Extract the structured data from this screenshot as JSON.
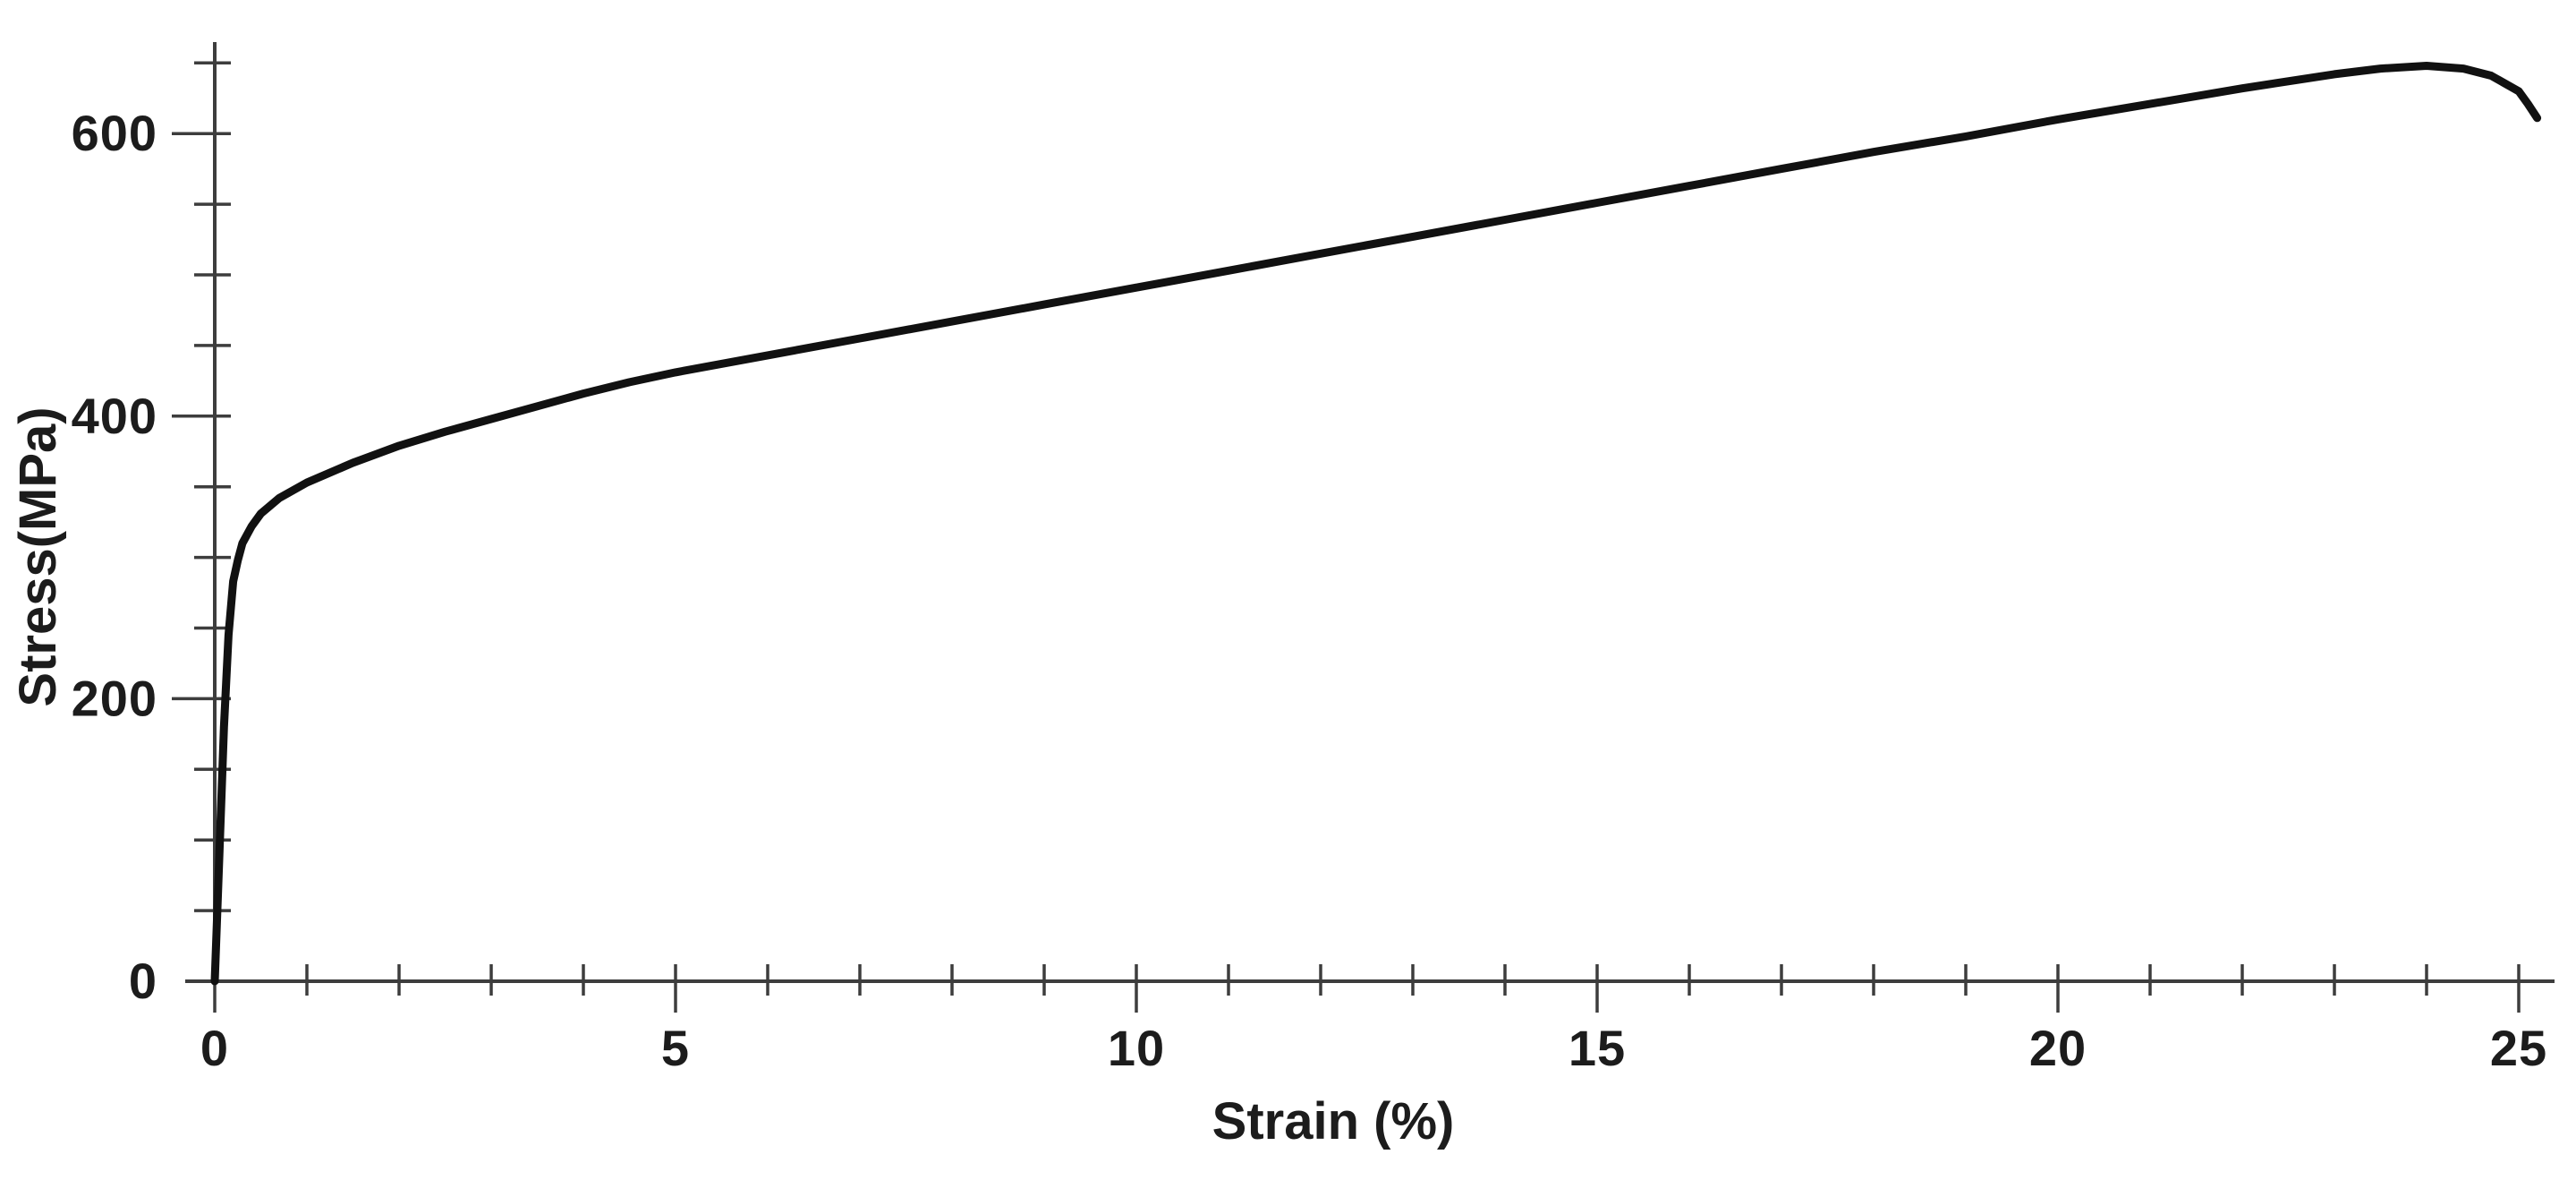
{
  "chart_data": {
    "type": "line",
    "title": "",
    "xlabel": "Strain (%)",
    "ylabel": "Stress(MPa)",
    "xlim": [
      0,
      25.5
    ],
    "ylim": [
      0,
      660
    ],
    "grid": false,
    "legend": null,
    "x_major_ticks": [
      0,
      5,
      10,
      15,
      20,
      25
    ],
    "x_tick_labels": [
      "0",
      "5",
      "10",
      "15",
      "20",
      "25"
    ],
    "x_minor_ticks": [
      1,
      2,
      3,
      4,
      6,
      7,
      8,
      9,
      11,
      12,
      13,
      14,
      16,
      17,
      18,
      19,
      21,
      22,
      23,
      24
    ],
    "y_major_ticks": [
      200,
      400,
      600
    ],
    "y_tick_labels": [
      "0",
      "200",
      "400",
      "600"
    ],
    "y_labeled_ticks": [
      0,
      200,
      400,
      600
    ],
    "y_minor_ticks": [
      50,
      100,
      150,
      250,
      300,
      350,
      450,
      500,
      550,
      650
    ],
    "series": [
      {
        "name": "stress-strain curve",
        "x": [
          0,
          0.05,
          0.1,
          0.15,
          0.2,
          0.25,
          0.3,
          0.4,
          0.5,
          0.7,
          1,
          1.5,
          2,
          2.5,
          3,
          3.5,
          4,
          4.5,
          5,
          6,
          7,
          8,
          9,
          10,
          11,
          12,
          13,
          14,
          15,
          16,
          17,
          18,
          19,
          20,
          21,
          22,
          23,
          23.5,
          24,
          24.4,
          24.7,
          25,
          25.1,
          25.2
        ],
        "y": [
          0,
          90,
          180,
          245,
          283,
          298,
          310,
          322,
          331,
          342,
          353,
          367,
          379,
          389,
          398,
          407,
          416,
          424,
          431,
          443,
          455,
          467,
          479,
          491,
          503,
          515,
          527,
          539,
          551,
          563,
          575,
          587,
          598,
          610,
          621,
          632,
          642,
          646,
          648,
          646,
          641,
          630,
          621,
          611
        ]
      }
    ],
    "curve_color": "#111111",
    "axis_color": "#3d3d3d",
    "background_color": "#ffffff"
  }
}
